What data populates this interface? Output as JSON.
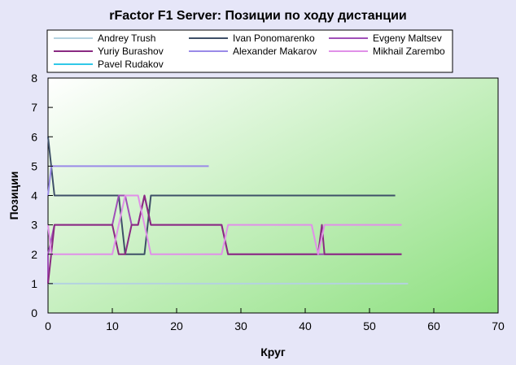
{
  "chart_data": {
    "type": "line",
    "title": "rFactor F1 Server: Позиции по ходу дистанции",
    "xlabel": "Круг",
    "ylabel": "Позиции",
    "xlim": [
      0,
      70
    ],
    "ylim": [
      0,
      8
    ],
    "xticks": [
      0,
      10,
      20,
      30,
      40,
      50,
      60,
      70
    ],
    "yticks": [
      0,
      1,
      2,
      3,
      4,
      5,
      6,
      7,
      8
    ],
    "grid": false,
    "legend_position": "top",
    "series": [
      {
        "name": "Andrey Trush",
        "color": "#b4d2e0",
        "points": [
          [
            0,
            1
          ],
          [
            56,
            1
          ]
        ]
      },
      {
        "name": "Ivan Ponomarenko",
        "color": "#3e5068",
        "points": [
          [
            0,
            6
          ],
          [
            1,
            4
          ],
          [
            11,
            4
          ],
          [
            12,
            2
          ],
          [
            15,
            2
          ],
          [
            16,
            4
          ],
          [
            54,
            4
          ]
        ]
      },
      {
        "name": "Evgeny Maltsev",
        "color": "#a050b8",
        "points": [
          [
            0,
            1
          ],
          [
            0,
            2
          ],
          [
            1,
            3
          ],
          [
            10,
            3
          ],
          [
            11,
            4
          ],
          [
            12,
            4
          ],
          [
            13,
            3
          ],
          [
            14,
            3
          ],
          [
            15,
            4
          ],
          [
            16,
            3
          ],
          [
            27,
            3
          ],
          [
            28,
            2
          ],
          [
            55,
            2
          ]
        ]
      },
      {
        "name": "Yuriy Burashov",
        "color": "#8a2a82",
        "points": [
          [
            0,
            1
          ],
          [
            1,
            3
          ],
          [
            10,
            3
          ],
          [
            11,
            2
          ],
          [
            12,
            2
          ],
          [
            13,
            3
          ],
          [
            14,
            3
          ],
          [
            15,
            4
          ],
          [
            16,
            3
          ],
          [
            27,
            3
          ],
          [
            28,
            2
          ],
          [
            42,
            2
          ],
          [
            42.6,
            3
          ],
          [
            43,
            2
          ],
          [
            55,
            2
          ]
        ]
      },
      {
        "name": "Alexander Makarov",
        "color": "#9a8ae8",
        "points": [
          [
            0,
            4
          ],
          [
            0.5,
            5
          ],
          [
            25,
            5
          ]
        ]
      },
      {
        "name": "Mikhail Zarembo",
        "color": "#e090e8",
        "points": [
          [
            0,
            3
          ],
          [
            0.5,
            2
          ],
          [
            1,
            2
          ],
          [
            10,
            2
          ],
          [
            11,
            3
          ],
          [
            12,
            4
          ],
          [
            14,
            4
          ],
          [
            15,
            3
          ],
          [
            16,
            2
          ],
          [
            27,
            2
          ],
          [
            28,
            3
          ],
          [
            41,
            3
          ],
          [
            42,
            2
          ],
          [
            43,
            3
          ],
          [
            55,
            3
          ]
        ]
      },
      {
        "name": "Pavel Rudakov",
        "color": "#30c8e8",
        "points": []
      }
    ]
  }
}
